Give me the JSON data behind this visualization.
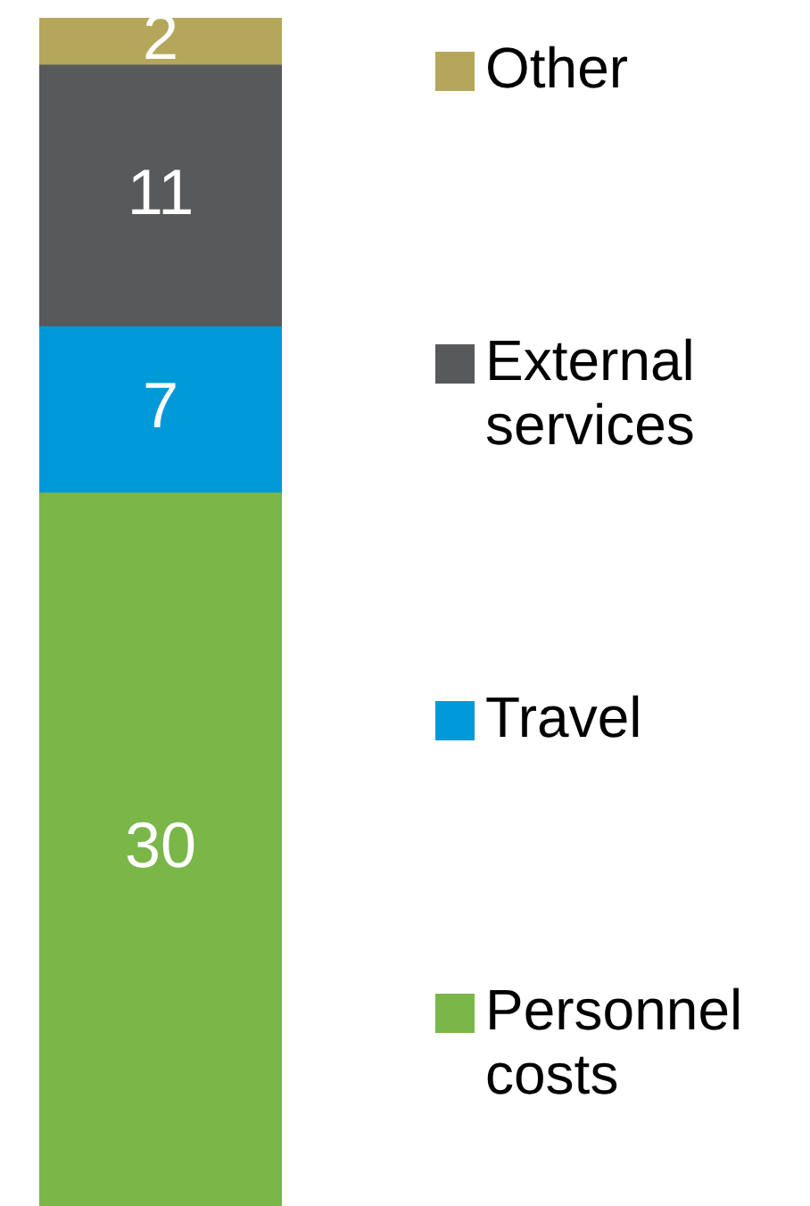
{
  "chart_data": {
    "type": "bar",
    "stacked": true,
    "categories": [
      null
    ],
    "series": [
      {
        "name": "Personnel costs",
        "color": "#7ab648",
        "values": [
          30
        ]
      },
      {
        "name": "Travel",
        "color": "#0099d8",
        "values": [
          7
        ]
      },
      {
        "name": "External services",
        "color": "#58595b",
        "values": [
          11
        ]
      },
      {
        "name": "Other",
        "color": "#b4a75c",
        "values": [
          2
        ]
      }
    ],
    "data_labels": true,
    "legend": "right",
    "tick_labels": false
  }
}
